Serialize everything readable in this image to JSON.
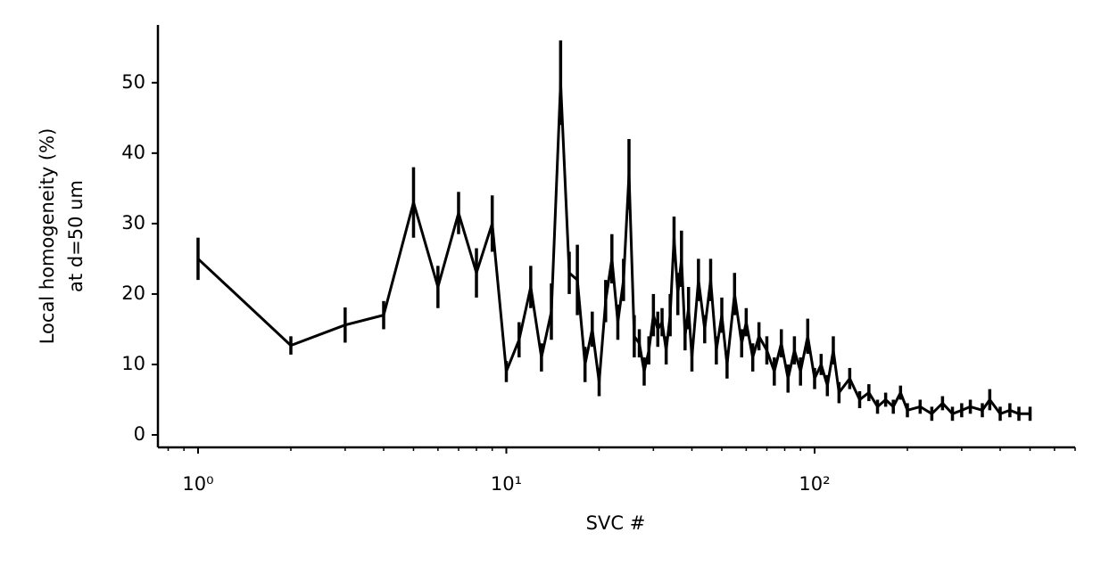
{
  "chart_data": {
    "type": "line",
    "xlabel": "SVC #",
    "ylabel": [
      "Local homogeneity (%)",
      "at d=50 um"
    ],
    "xscale": "log",
    "xlim": [
      0.741,
      700
    ],
    "ylim": [
      -1.77,
      58.2
    ],
    "xticks": [
      {
        "value": 1,
        "label": "10⁰"
      },
      {
        "value": 10,
        "label": "10¹"
      },
      {
        "value": 100,
        "label": "10²"
      }
    ],
    "xminorticks": [
      0.8,
      0.9,
      2,
      3,
      4,
      5,
      6,
      7,
      8,
      9,
      20,
      30,
      40,
      50,
      60,
      70,
      80,
      90,
      200,
      300,
      400,
      500,
      600,
      700
    ],
    "yticks": [
      0,
      10,
      20,
      30,
      40,
      50
    ],
    "x": [
      1,
      2,
      3,
      4,
      5,
      6,
      7,
      8,
      9,
      10,
      11,
      12,
      13,
      14,
      15,
      16,
      17,
      18,
      19,
      20,
      21,
      22,
      23,
      24,
      25,
      26,
      27,
      28,
      29,
      30,
      31,
      32,
      33,
      34,
      35,
      36,
      37,
      38,
      39,
      40,
      42,
      44,
      46,
      48,
      50,
      52,
      55,
      58,
      60,
      63,
      66,
      70,
      74,
      78,
      82,
      86,
      90,
      95,
      100,
      105,
      110,
      115,
      120,
      130,
      140,
      150,
      160,
      170,
      180,
      190,
      200,
      220,
      240,
      260,
      280,
      300,
      320,
      350,
      370,
      400,
      430,
      460,
      500
    ],
    "series": [
      {
        "color": "#000000",
        "values": [
          25,
          12.7,
          15.6,
          17,
          33,
          21,
          31.5,
          23,
          30,
          9,
          13.5,
          21,
          11,
          17.5,
          50,
          23,
          22,
          10,
          15,
          7.5,
          19,
          25,
          16,
          22,
          37,
          14,
          13,
          9,
          12,
          17,
          15,
          16,
          12,
          17,
          28,
          20,
          25,
          14,
          18,
          11,
          22,
          15,
          22,
          12,
          17,
          10,
          20,
          13,
          16,
          11,
          14,
          12,
          9,
          13,
          8,
          12,
          9,
          14,
          8,
          10,
          7,
          12,
          6,
          8,
          5,
          6,
          4,
          5,
          4,
          6,
          3.5,
          4,
          3,
          4.5,
          3,
          3.5,
          4,
          3.5,
          5,
          3,
          3.5,
          3,
          3
        ],
        "errors": [
          3,
          1.3,
          2.5,
          2,
          5,
          3,
          3,
          3.5,
          4,
          1.5,
          2.5,
          3,
          2,
          4,
          6,
          3,
          5,
          2.5,
          2.5,
          2,
          3,
          3.5,
          2.5,
          3,
          5,
          3,
          2,
          2,
          2,
          3,
          2.5,
          2,
          2,
          3,
          3,
          3,
          4,
          2,
          3,
          2,
          3,
          2,
          3,
          2,
          2.5,
          2,
          3,
          2,
          2,
          2,
          2,
          2,
          2,
          2,
          2,
          2,
          2,
          2.5,
          1.5,
          1.5,
          1.5,
          2,
          1.5,
          1.5,
          1.2,
          1.2,
          1,
          1,
          1,
          1,
          1,
          1,
          1,
          1,
          1,
          1,
          1,
          1,
          1.5,
          1,
          1,
          1,
          1
        ]
      }
    ]
  }
}
